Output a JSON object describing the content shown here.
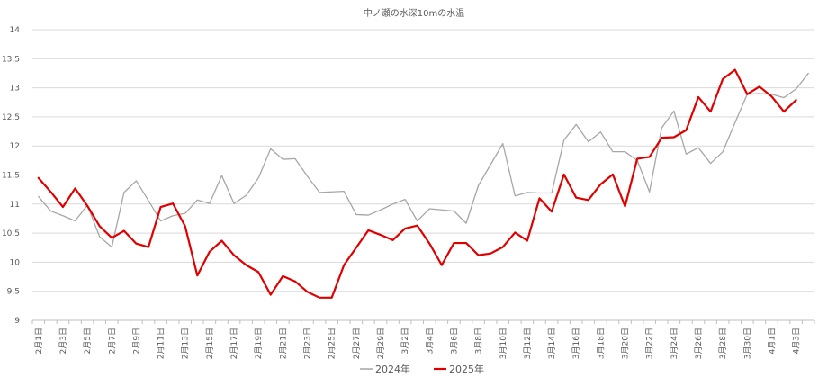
{
  "chart_data": {
    "type": "line",
    "title": "中ノ瀬の水深10mの水温",
    "ylim": [
      9,
      14
    ],
    "y_ticks": [
      "9",
      "9.5",
      "10",
      "10.5",
      "11",
      "11.5",
      "12",
      "12.5",
      "13",
      "13.5",
      "14"
    ],
    "grid": true,
    "legend_position": "bottom",
    "categories": [
      "2月1日",
      "2月2日",
      "2月3日",
      "2月4日",
      "2月5日",
      "2月6日",
      "2月7日",
      "2月8日",
      "2月9日",
      "2月10日",
      "2月11日",
      "2月12日",
      "2月13日",
      "2月14日",
      "2月15日",
      "2月16日",
      "2月17日",
      "2月18日",
      "2月19日",
      "2月20日",
      "2月21日",
      "2月22日",
      "2月23日",
      "2月24日",
      "2月25日",
      "2月26日",
      "2月27日",
      "2月28日",
      "2月29日",
      "3月1日",
      "3月2日",
      "3月3日",
      "3月4日",
      "3月5日",
      "3月6日",
      "3月7日",
      "3月8日",
      "3月9日",
      "3月10日",
      "3月11日",
      "3月12日",
      "3月13日",
      "3月14日",
      "3月15日",
      "3月16日",
      "3月17日",
      "3月18日",
      "3月19日",
      "3月20日",
      "3月21日",
      "3月22日",
      "3月23日",
      "3月24日",
      "3月25日",
      "3月26日",
      "3月27日",
      "3月28日",
      "3月29日",
      "3月30日",
      "3月31日",
      "4月1日",
      "4月2日",
      "4月3日",
      "4月4日"
    ],
    "tick_labels": [
      "2月1日",
      "2月3日",
      "2月5日",
      "2月7日",
      "2月9日",
      "2月11日",
      "2月13日",
      "2月15日",
      "2月17日",
      "2月19日",
      "2月21日",
      "2月23日",
      "2月25日",
      "2月27日",
      "2月29日",
      "3月2日",
      "3月4日",
      "3月6日",
      "3月8日",
      "3月10日",
      "3月12日",
      "3月14日",
      "3月16日",
      "3月18日",
      "3月20日",
      "3月22日",
      "3月24日",
      "3月26日",
      "3月28日",
      "3月30日",
      "4月1日",
      "4月3日"
    ],
    "series": [
      {
        "name": "2024年",
        "color": "#a6a6a6",
        "values": [
          11.13,
          10.88,
          10.8,
          10.71,
          10.98,
          10.44,
          10.26,
          11.2,
          11.4,
          11.06,
          10.71,
          10.8,
          10.84,
          11.07,
          11.01,
          11.49,
          11.01,
          11.15,
          11.45,
          11.95,
          11.77,
          11.78,
          11.48,
          11.2,
          11.21,
          11.22,
          10.82,
          10.81,
          10.9,
          11.0,
          11.08,
          10.71,
          10.92,
          10.9,
          10.88,
          10.67,
          11.32,
          11.68,
          12.04,
          11.14,
          11.2,
          11.19,
          11.19,
          12.1,
          12.37,
          12.07,
          12.24,
          11.9,
          11.9,
          11.75,
          11.21,
          12.31,
          12.6,
          11.86,
          11.97,
          11.7,
          11.9,
          12.4,
          12.89,
          12.9,
          12.89,
          12.83,
          12.98,
          13.25
        ]
      },
      {
        "name": "2025年",
        "color": "#e00000",
        "values": [
          11.45,
          11.21,
          10.95,
          11.27,
          10.97,
          10.62,
          10.42,
          10.54,
          10.32,
          10.26,
          10.95,
          11.01,
          10.62,
          9.77,
          10.18,
          10.37,
          10.12,
          9.95,
          9.83,
          9.44,
          9.76,
          9.67,
          9.49,
          9.39,
          9.39,
          9.95,
          10.25,
          10.55,
          10.47,
          10.38,
          10.58,
          10.63,
          10.32,
          9.95,
          10.33,
          10.33,
          10.12,
          10.15,
          10.26,
          10.51,
          10.37,
          11.1,
          10.87,
          11.51,
          11.11,
          11.07,
          11.34,
          11.51,
          10.96,
          11.78,
          11.81,
          12.14,
          12.15,
          12.27,
          12.84,
          12.59,
          13.15,
          13.31,
          12.89,
          13.02,
          12.85,
          12.59,
          12.79,
          null
        ]
      }
    ]
  }
}
